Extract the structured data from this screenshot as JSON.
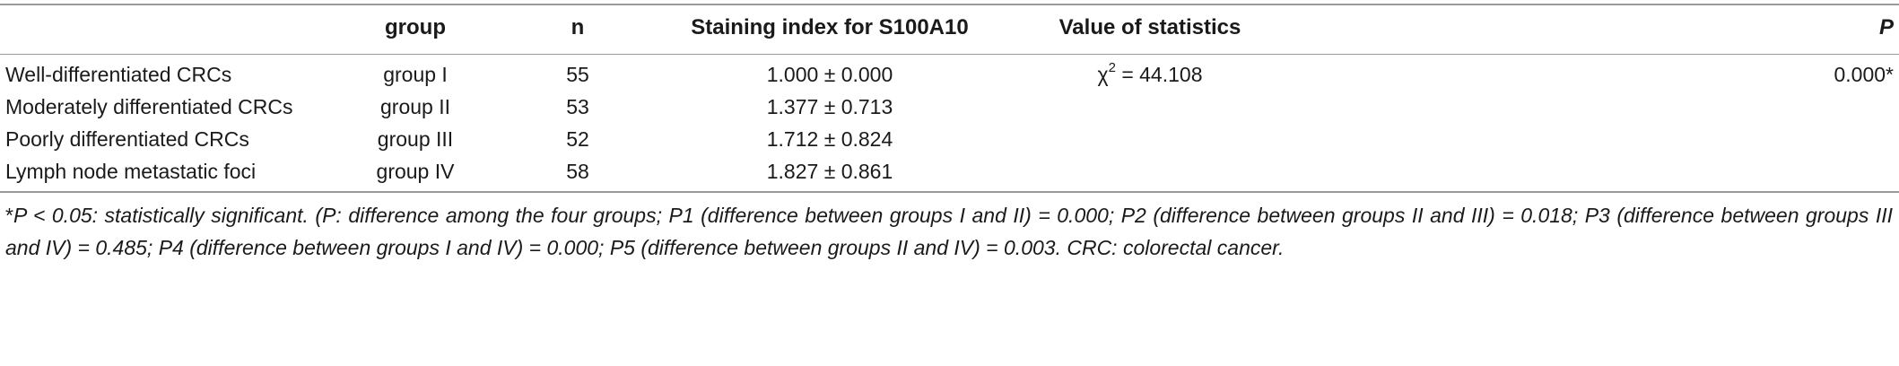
{
  "header": {
    "col_label": "",
    "col_group": "group",
    "col_n": "n",
    "col_staining": "Staining index for S100A10",
    "col_stat": "Value of statistics",
    "col_p": "P"
  },
  "rows": [
    {
      "label": "Well-differentiated CRCs",
      "group": "group I",
      "n": "55",
      "staining": "1.000 ± 0.000",
      "stat_prefix": "χ",
      "stat_sup": "2",
      "stat_suffix": " = 44.108",
      "p": "0.000*"
    },
    {
      "label": "Moderately differentiated CRCs",
      "group": "group II",
      "n": "53",
      "staining": "1.377 ± 0.713",
      "stat_prefix": "",
      "stat_sup": "",
      "stat_suffix": "",
      "p": ""
    },
    {
      "label": "Poorly differentiated CRCs",
      "group": "group III",
      "n": "52",
      "staining": "1.712 ± 0.824",
      "stat_prefix": "",
      "stat_sup": "",
      "stat_suffix": "",
      "p": ""
    },
    {
      "label": "Lymph node metastatic foci",
      "group": "group IV",
      "n": "58",
      "staining": "1.827 ± 0.861",
      "stat_prefix": "",
      "stat_sup": "",
      "stat_suffix": "",
      "p": ""
    }
  ],
  "footnote": {
    "star": "*",
    "text": "P < 0.05: statistically significant. (P: difference among the four groups; P1 (difference between groups I and II) = 0.000; P2 (difference between groups II and III) = 0.018; P3 (difference between groups III and IV) = 0.485; P4 (difference between groups I and IV) = 0.000; P5 (difference between groups II and IV) = 0.003. CRC: colorectal cancer."
  }
}
